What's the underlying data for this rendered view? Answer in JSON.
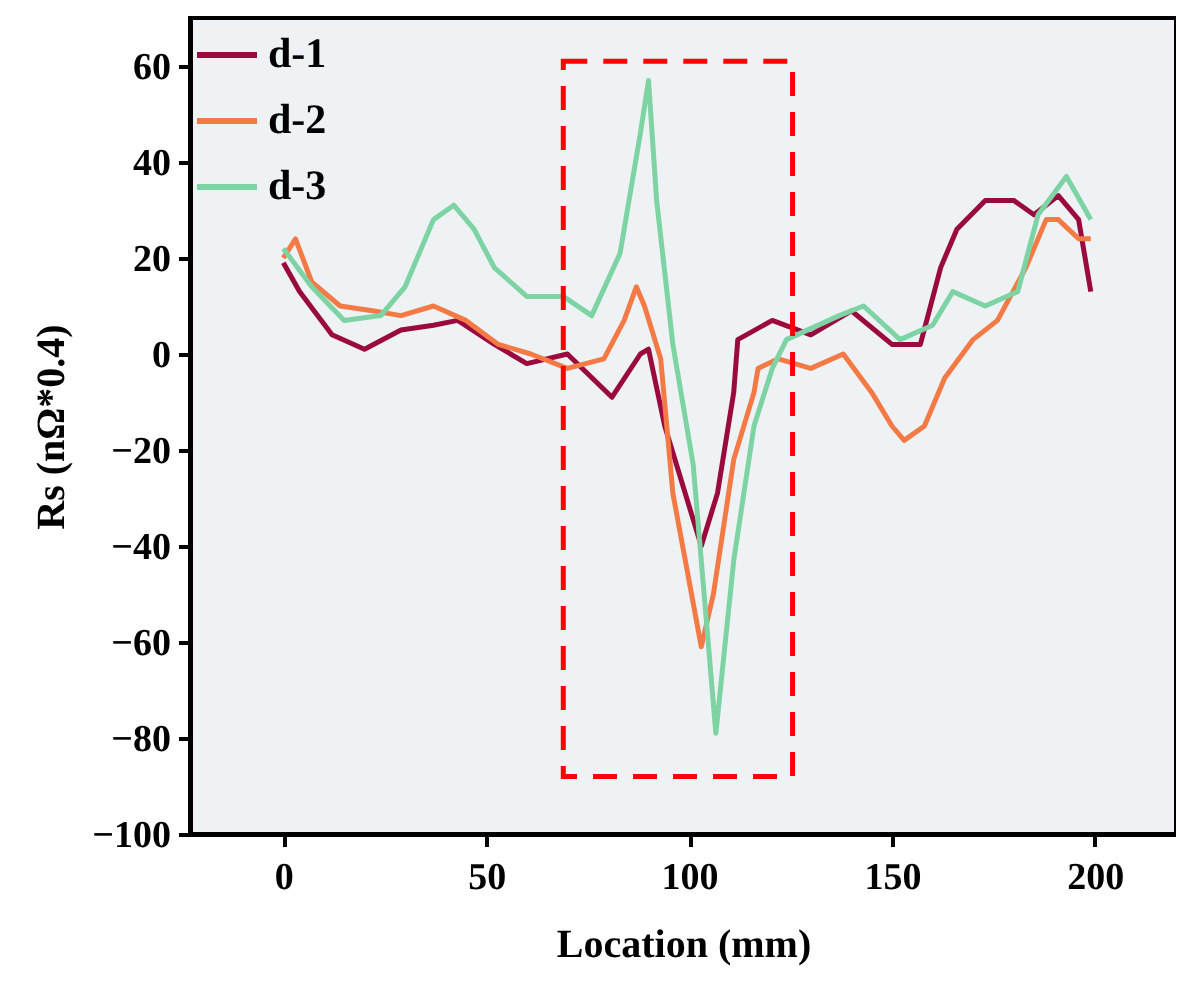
{
  "chart_data": {
    "type": "line",
    "xlabel": "Location (mm)",
    "ylabel": "Rs (nΩ*0.4)",
    "xlim": [
      -23,
      220
    ],
    "ylim": [
      -100,
      70
    ],
    "xticks": [
      0,
      50,
      100,
      150,
      200
    ],
    "yticks": [
      -100,
      -80,
      -60,
      -40,
      -20,
      0,
      20,
      40,
      60
    ],
    "grid": false,
    "legend": "top left",
    "line_style": "solid",
    "marker": "none",
    "series": [
      {
        "name": "d-1",
        "color": "#9b0a3e",
        "x": [
          0,
          4,
          12,
          20,
          29,
          37,
          43,
          52,
          60,
          70,
          81,
          88,
          90,
          94,
          103,
          107,
          111,
          112,
          120.5,
          130,
          140,
          150,
          157,
          162,
          166,
          173,
          180,
          185,
          191,
          196,
          199
        ],
        "values": [
          19,
          13,
          4,
          1,
          5,
          6,
          7,
          2,
          -2,
          0,
          -9,
          0,
          1,
          -15,
          -40,
          -29,
          -8,
          3,
          7,
          4,
          9,
          2,
          2,
          18,
          26,
          32,
          32,
          29,
          33,
          28,
          13
        ]
      },
      {
        "name": "d-2",
        "color": "#f47a45",
        "x": [
          0,
          3,
          7,
          14,
          22,
          29,
          37,
          45,
          53,
          61,
          70,
          79,
          84,
          87,
          89,
          93,
          96,
          103,
          106,
          111,
          116,
          117,
          122,
          130,
          138,
          145,
          150,
          153,
          158,
          163,
          170,
          176,
          183,
          188,
          191,
          196,
          199
        ],
        "values": [
          20,
          24,
          15,
          10,
          9,
          8,
          10,
          7,
          2,
          0,
          -3,
          -1,
          7,
          14,
          10,
          -1,
          -29,
          -61,
          -50,
          -22,
          -8,
          -3,
          -1,
          -3,
          0,
          -8,
          -15,
          -18,
          -15,
          -5,
          3,
          7,
          18,
          28,
          28,
          24,
          24
        ]
      },
      {
        "name": "d-3",
        "color": "#7dd3a3",
        "x": [
          0,
          7,
          15,
          24,
          30,
          37,
          42,
          47,
          52,
          60,
          69,
          76,
          83,
          88,
          90,
          92,
          96,
          101,
          106.6,
          111,
          116,
          120.5,
          124,
          137,
          143,
          152,
          160,
          165,
          173,
          181,
          186,
          193,
          199
        ],
        "values": [
          22,
          14,
          7,
          8,
          14,
          28,
          31,
          26,
          18,
          12,
          12,
          8,
          21,
          46,
          57,
          32,
          2,
          -23,
          -79,
          -43,
          -15,
          -3,
          3,
          8,
          10,
          3,
          6,
          13,
          10,
          13,
          29,
          37,
          28
        ]
      }
    ]
  }
}
